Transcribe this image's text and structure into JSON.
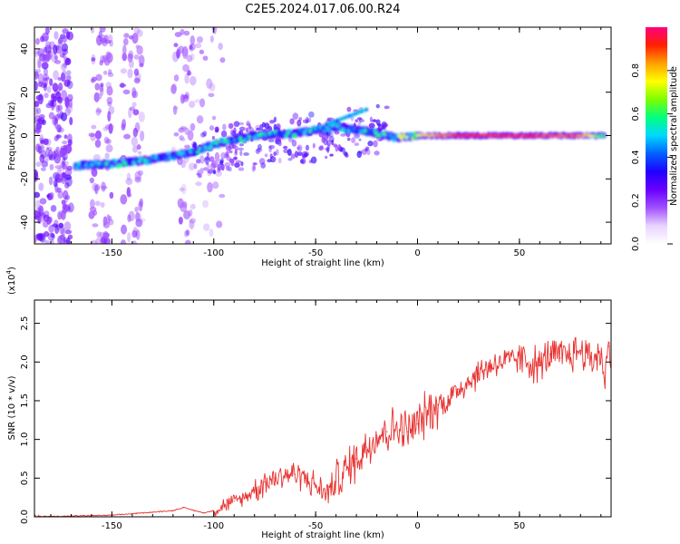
{
  "title": "C2E5.2024.017.06.00.R24",
  "chart_data": [
    {
      "type": "heatmap",
      "xlabel": "Height of straight line (km)",
      "ylabel": "Frequency (Hz)",
      "xlim": [
        -188,
        95
      ],
      "ylim": [
        -50,
        50
      ],
      "xticks": [
        -150,
        -100,
        -50,
        0,
        50
      ],
      "yticks": [
        -40,
        -20,
        0,
        20,
        40
      ],
      "colorbar": {
        "label": "Normalized spectral amplitude",
        "range": [
          0,
          1
        ],
        "ticks": [
          "0.0",
          "0.2",
          "0.4",
          "0.6",
          "0.8"
        ],
        "tick_values": [
          0.0,
          0.2,
          0.4,
          0.6,
          0.8
        ],
        "colormap": [
          "#ffffff",
          "#e8d4ff",
          "#a050ff",
          "#6a00ff",
          "#2000ff",
          "#0060ff",
          "#00d8ff",
          "#00ff80",
          "#7cff00",
          "#ffff00",
          "#ffa000",
          "#ff2000",
          "#ff0080"
        ]
      },
      "ridge": [
        {
          "x": -168,
          "freq": -14,
          "amp": 0.55
        },
        {
          "x": -150,
          "freq": -13,
          "amp": 0.6
        },
        {
          "x": -130,
          "freq": -11,
          "amp": 0.6
        },
        {
          "x": -112,
          "freq": -8,
          "amp": 0.55
        },
        {
          "x": -100,
          "freq": -4,
          "amp": 0.6
        },
        {
          "x": -80,
          "freq": 0,
          "amp": 0.6
        },
        {
          "x": -60,
          "freq": 1,
          "amp": 0.6
        },
        {
          "x": -40,
          "freq": 4,
          "amp": 0.55
        },
        {
          "x": -25,
          "freq": 2,
          "amp": 0.6
        },
        {
          "x": -10,
          "freq": -1,
          "amp": 0.75
        },
        {
          "x": 0,
          "freq": 0,
          "amp": 0.8
        },
        {
          "x": 20,
          "freq": 0,
          "amp": 0.95
        },
        {
          "x": 50,
          "freq": 0,
          "amp": 0.95
        },
        {
          "x": 80,
          "freq": 0,
          "amp": 0.9
        },
        {
          "x": 92,
          "freq": 0,
          "amp": 0.6
        }
      ]
    },
    {
      "type": "line",
      "xlabel": "Height of straight line (km)",
      "ylabel": "SNR (10 * v/v)",
      "multiplier": "(x10",
      "multiplier_exp": "4",
      "multiplier_close": ")",
      "xlim": [
        -188,
        95
      ],
      "ylim": [
        0,
        2.8
      ],
      "xticks": [
        -150,
        -100,
        -50,
        0,
        50
      ],
      "yticks": [
        "0.0",
        "0.5",
        "1.0",
        "1.5",
        "2.0",
        "2.5"
      ],
      "ytick_values": [
        0.0,
        0.5,
        1.0,
        1.5,
        2.0,
        2.5
      ],
      "color": "#e8312f",
      "series": [
        {
          "x": [
            -188,
            -170,
            -150,
            -130,
            -120,
            -115,
            -105,
            -100,
            -95,
            -90,
            -85,
            -80,
            -75,
            -70,
            -65,
            -60,
            -55,
            -50,
            -45,
            -40,
            -35,
            -30,
            -25,
            -20,
            -15,
            -10,
            -5,
            0,
            5,
            10,
            15,
            20,
            25,
            30,
            35,
            40,
            45,
            50,
            55,
            60,
            65,
            70,
            75,
            80,
            85,
            90,
            92,
            94
          ],
          "values": [
            0.0,
            0.01,
            0.02,
            0.06,
            0.08,
            0.12,
            0.05,
            0.08,
            0.15,
            0.2,
            0.25,
            0.35,
            0.45,
            0.5,
            0.55,
            0.55,
            0.5,
            0.4,
            0.3,
            0.45,
            0.6,
            0.75,
            0.9,
            1.05,
            1.1,
            1.15,
            1.1,
            1.2,
            1.35,
            1.45,
            1.5,
            1.65,
            1.75,
            1.85,
            1.95,
            2.0,
            2.0,
            2.05,
            2.0,
            1.95,
            2.1,
            2.05,
            2.1,
            2.15,
            2.05,
            2.1,
            1.8,
            2.2
          ]
        }
      ]
    }
  ]
}
